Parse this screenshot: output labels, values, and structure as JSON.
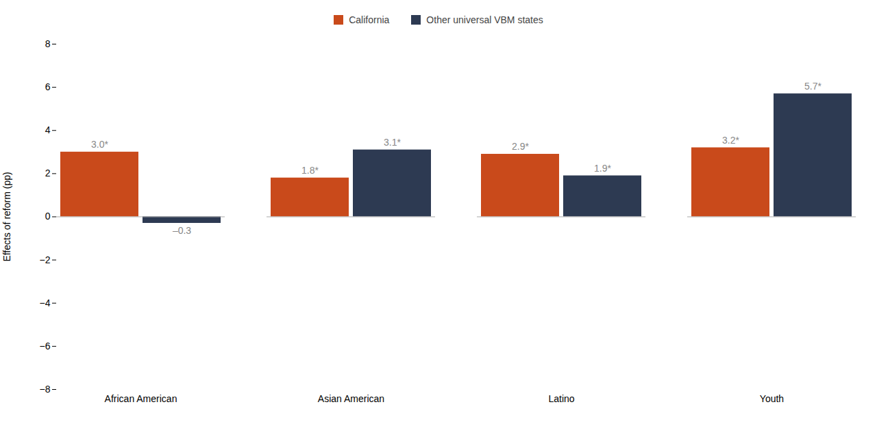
{
  "chart_data": {
    "type": "bar",
    "categories": [
      "African American",
      "Asian American",
      "Latino",
      "Youth"
    ],
    "series": [
      {
        "name": "California",
        "color": "#C94A1B",
        "values": [
          3.0,
          1.8,
          2.9,
          3.2
        ],
        "value_labels": [
          "3.0*",
          "1.8*",
          "2.9*",
          "3.2*"
        ]
      },
      {
        "name": "Other universal VBM states",
        "color": "#2D3A52",
        "values": [
          -0.3,
          3.1,
          1.9,
          5.7
        ],
        "value_labels": [
          "–0.3",
          "3.1*",
          "1.9*",
          "5.7*"
        ]
      }
    ],
    "ylabel": "Effects of reform (pp)",
    "ylim": [
      -8,
      8
    ],
    "yticks": [
      {
        "value": -8,
        "label": "−8"
      },
      {
        "value": -6,
        "label": "−6"
      },
      {
        "value": -4,
        "label": "−4"
      },
      {
        "value": -2,
        "label": "−2"
      },
      0,
      2,
      4,
      6,
      8
    ],
    "grid": false,
    "legend": "top",
    "data_labels": true
  }
}
